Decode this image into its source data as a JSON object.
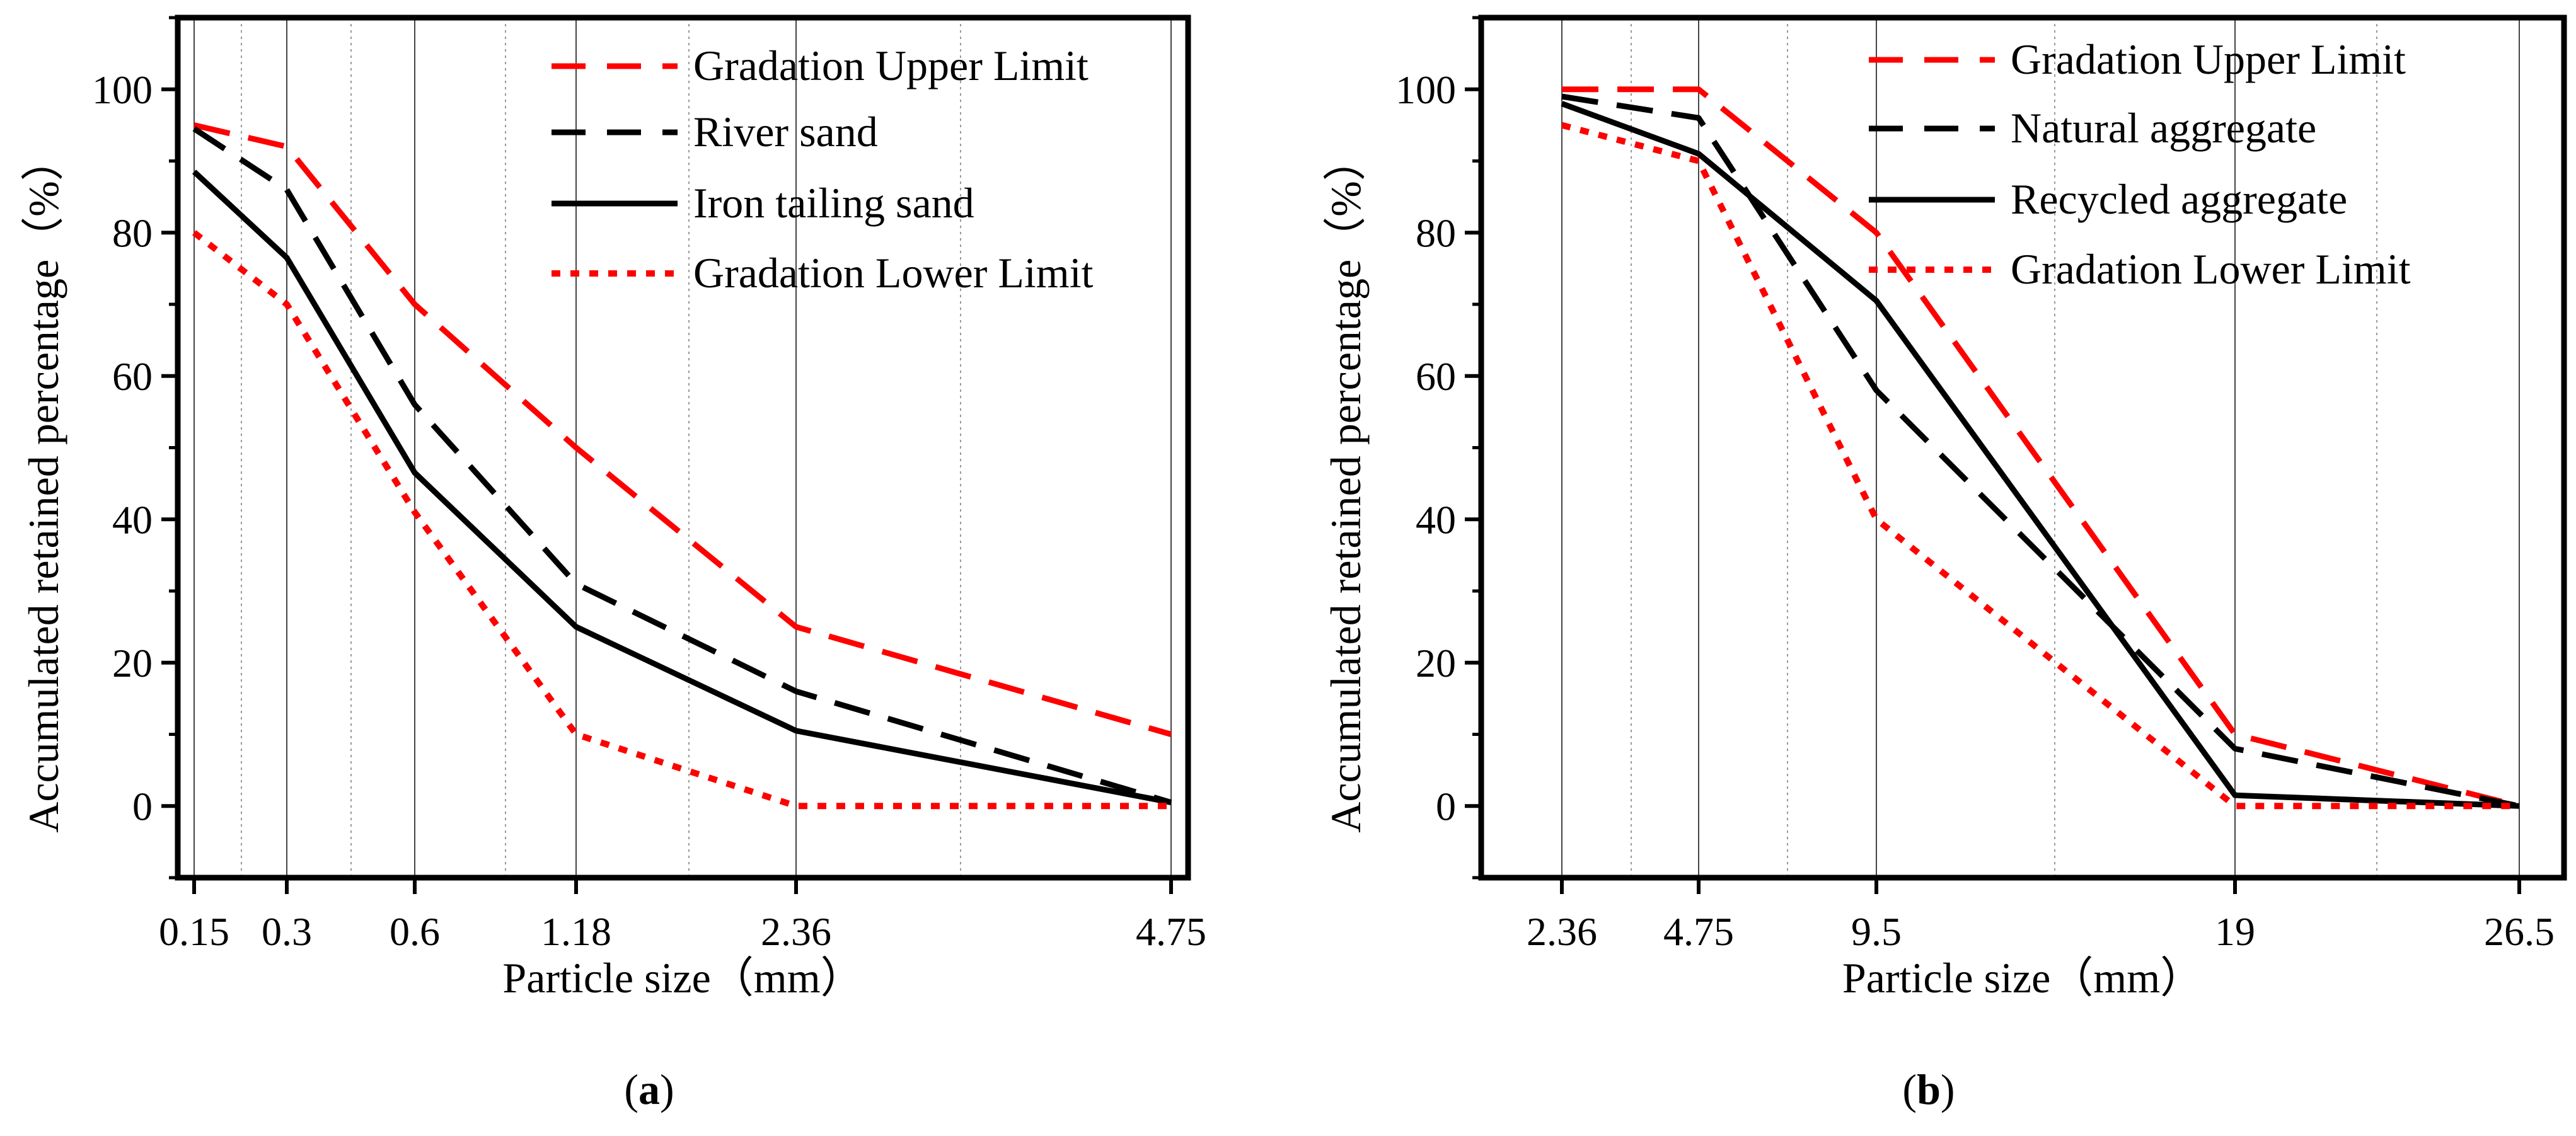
{
  "colors": {
    "red": "#ff0000",
    "black": "#000000",
    "grid": "#9a9a9a"
  },
  "chart_data": [
    {
      "panel_label": "(a)",
      "panel_letter": "a",
      "type": "line",
      "xlabel": "Particle size（mm）",
      "ylabel": "Accumulated retained percentage（%）",
      "ylim": [
        -10,
        110
      ],
      "yticks": [
        0,
        20,
        40,
        60,
        80,
        100
      ],
      "x_tick_labels": [
        "0.15",
        "0.3",
        "0.6",
        "1.18",
        "2.36",
        "4.75"
      ],
      "x_gridlines": "solid lines at each labeled sieve size, dotted minor lines between",
      "legend_position": "top-right",
      "series": [
        {
          "name": "Gradation Upper Limit",
          "style": "dashed",
          "color": "red",
          "values": [
            95,
            92,
            70,
            50,
            25,
            10
          ]
        },
        {
          "name": "River sand",
          "style": "dashed",
          "color": "black",
          "values": [
            94.5,
            86,
            56,
            31,
            16,
            0.5
          ]
        },
        {
          "name": "Iron tailing sand",
          "style": "solid",
          "color": "black",
          "values": [
            88.5,
            76.5,
            46.5,
            25,
            10.5,
            0.5
          ]
        },
        {
          "name": "Gradation Lower Limit",
          "style": "dotted",
          "color": "red",
          "values": [
            80,
            70,
            41,
            10,
            0,
            0
          ]
        }
      ]
    },
    {
      "panel_label": "(b)",
      "panel_letter": "b",
      "type": "line",
      "xlabel": "Particle size（mm）",
      "ylabel": "Accumulated retained percentage（%）",
      "ylim": [
        -10,
        110
      ],
      "yticks": [
        0,
        20,
        40,
        60,
        80,
        100
      ],
      "x_tick_labels": [
        "2.36",
        "4.75",
        "9.5",
        "19",
        "26.5"
      ],
      "legend_position": "top-right",
      "series": [
        {
          "name": "Gradation Upper Limit",
          "style": "dashed",
          "color": "red",
          "values": [
            100,
            100,
            80,
            10,
            0
          ]
        },
        {
          "name": "Natural aggregate",
          "style": "dashed",
          "color": "black",
          "values": [
            99,
            96,
            58,
            8,
            0
          ]
        },
        {
          "name": "Recycled aggregate",
          "style": "solid",
          "color": "black",
          "values": [
            98,
            91,
            70.5,
            1.5,
            0
          ]
        },
        {
          "name": "Gradation Lower Limit",
          "style": "dotted",
          "color": "red",
          "values": [
            95,
            90,
            40,
            0,
            0
          ]
        }
      ]
    }
  ]
}
